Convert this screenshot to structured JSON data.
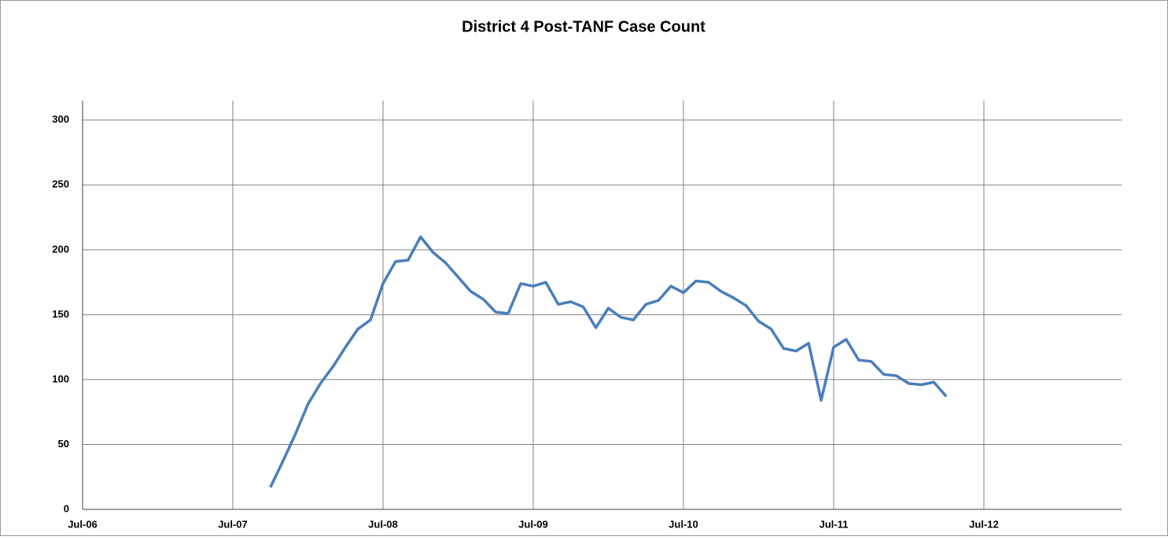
{
  "chart_data": {
    "type": "line",
    "title": "District 4 Post-TANF Case Count",
    "x": [
      "Oct-07",
      "Nov-07",
      "Dec-07",
      "Jan-08",
      "Feb-08",
      "Mar-08",
      "Apr-08",
      "May-08",
      "Jun-08",
      "Jul-08",
      "Aug-08",
      "Sep-08",
      "Oct-08",
      "Nov-08",
      "Dec-08",
      "Jan-09",
      "Feb-09",
      "Mar-09",
      "Apr-09",
      "May-09",
      "Jun-09",
      "Jul-09",
      "Aug-09",
      "Sep-09",
      "Oct-09",
      "Nov-09",
      "Dec-09",
      "Jan-10",
      "Feb-10",
      "Mar-10",
      "Apr-10",
      "May-10",
      "Jun-10",
      "Jul-10",
      "Aug-10",
      "Sep-10",
      "Oct-10",
      "Nov-10",
      "Dec-10",
      "Jan-11",
      "Feb-11",
      "Mar-11",
      "Apr-11",
      "May-11",
      "Jun-11",
      "Jul-11",
      "Aug-11",
      "Sep-11",
      "Oct-11",
      "Nov-11",
      "Dec-11",
      "Jan-12",
      "Feb-12",
      "Mar-12",
      "Apr-12"
    ],
    "series": [
      {
        "name": "Post-TANF Case Count",
        "color": "#4a7ebb",
        "values": [
          17,
          37,
          58,
          81,
          97,
          110,
          125,
          139,
          146,
          174,
          191,
          192,
          210,
          198,
          190,
          179,
          168,
          162,
          152,
          151,
          174,
          172,
          175,
          158,
          160,
          156,
          140,
          155,
          148,
          146,
          158,
          161,
          172,
          167,
          176,
          175,
          168,
          163,
          157,
          145,
          139,
          124,
          122,
          128,
          84,
          125,
          131,
          115,
          114,
          104,
          103,
          97,
          96,
          98,
          87
        ]
      }
    ],
    "xlim": [
      "Jul-06",
      "Jun-13"
    ],
    "xticks": [
      "Jul-06",
      "Jul-07",
      "Jul-08",
      "Jul-09",
      "Jul-10",
      "Jul-11",
      "Jul-12"
    ],
    "ylim": [
      0,
      315
    ],
    "yticks": [
      0,
      50,
      100,
      150,
      200,
      250,
      300
    ],
    "grid": true
  }
}
